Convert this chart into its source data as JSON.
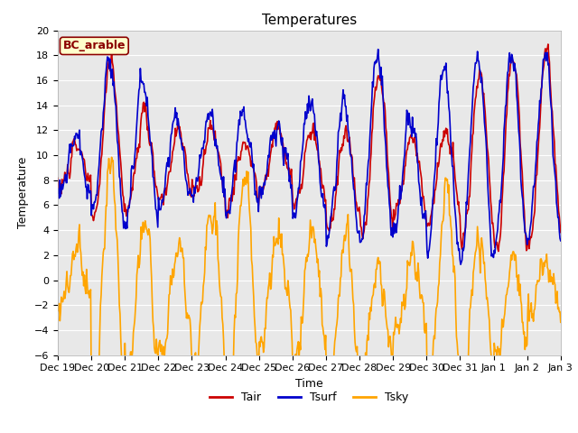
{
  "title": "Temperatures",
  "xlabel": "Time",
  "ylabel": "Temperature",
  "ylim": [
    -6,
    20
  ],
  "tick_labels": [
    "Dec 19",
    "Dec 20",
    "Dec 21",
    "Dec 22",
    "Dec 23",
    "Dec 24",
    "Dec 25",
    "Dec 26",
    "Dec 27",
    "Dec 28",
    "Dec 29",
    "Dec 30",
    "Dec 31",
    "Jan 1",
    "Jan 2",
    "Jan 3"
  ],
  "legend_title": "BC_arable",
  "legend_title_color": "#8B0000",
  "legend_title_bg": "#FFFFCC",
  "tair_color": "#CC0000",
  "tsurf_color": "#0000CC",
  "tsky_color": "#FFA500",
  "line_width": 1.2,
  "bg_color": "#E8E8E8",
  "grid_color": "#FFFFFF",
  "title_fontsize": 11,
  "axis_label_fontsize": 9,
  "tick_fontsize": 8,
  "legend_fontsize": 9,
  "annot_fontsize": 9
}
